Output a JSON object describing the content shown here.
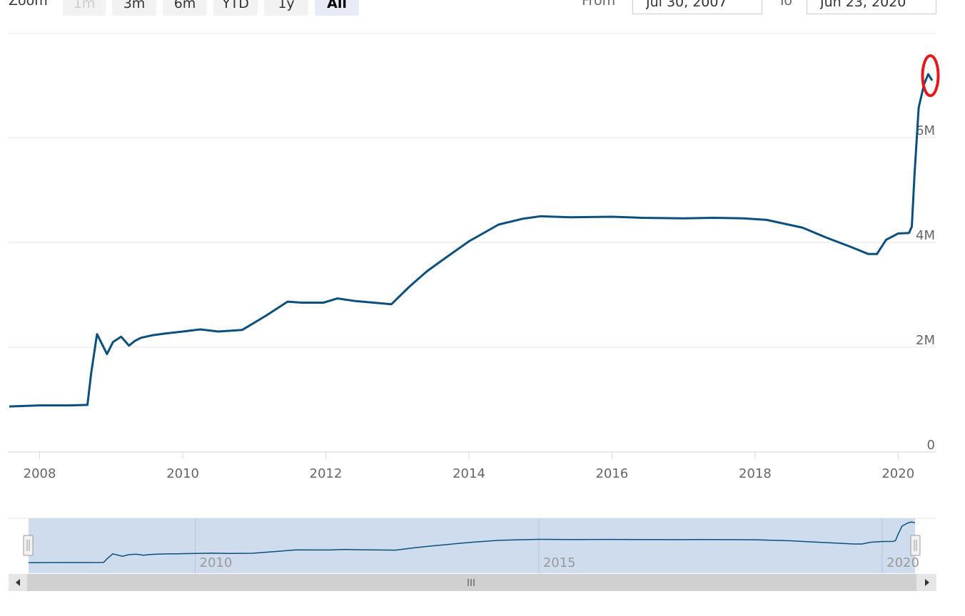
{
  "toolbar": {
    "zoom_label": "Zoom",
    "zoom_buttons": [
      {
        "label": "1m",
        "state": "disabled"
      },
      {
        "label": "3m",
        "state": "normal"
      },
      {
        "label": "6m",
        "state": "normal"
      },
      {
        "label": "YTD",
        "state": "normal"
      },
      {
        "label": "1y",
        "state": "normal"
      },
      {
        "label": "All",
        "state": "active"
      }
    ],
    "from_label": "From",
    "from_value": "Jul 30, 2007",
    "to_label": "To",
    "to_value": "Jun 23, 2020"
  },
  "colors": {
    "series": "#0b4f7c",
    "annotation": "#e31a1c",
    "navigator_fill": "#cfdcee",
    "scrollbar": "#d0d0d0"
  },
  "chart_data": {
    "type": "line",
    "title": "",
    "xlabel": "",
    "ylabel": "",
    "ylim": [
      0,
      8
    ],
    "xlim": [
      "2007-07-30",
      "2020-06-23"
    ],
    "y_ticks": [
      {
        "value": 0,
        "label": "0"
      },
      {
        "value": 2,
        "label": "2M"
      },
      {
        "value": 4,
        "label": "4M"
      },
      {
        "value": 6,
        "label": "6M"
      }
    ],
    "x_ticks": [
      {
        "date": "2008-01-01",
        "label": "2008"
      },
      {
        "date": "2010-01-01",
        "label": "2010"
      },
      {
        "date": "2012-01-01",
        "label": "2012"
      },
      {
        "date": "2014-01-01",
        "label": "2014"
      },
      {
        "date": "2016-01-01",
        "label": "2016"
      },
      {
        "date": "2018-01-01",
        "label": "2018"
      },
      {
        "date": "2020-01-01",
        "label": "2020"
      }
    ],
    "grid": true,
    "legend": "none",
    "series": [
      {
        "x": [
          "2007-07-30",
          "2008-01-01",
          "2008-06-01",
          "2008-09-01",
          "2008-09-20",
          "2008-10-20",
          "2008-12-10",
          "2009-01-10",
          "2009-02-20",
          "2009-04-01",
          "2009-05-01",
          "2009-06-01",
          "2009-08-01",
          "2009-10-01",
          "2010-01-01",
          "2010-04-01",
          "2010-07-01",
          "2010-11-01",
          "2011-03-01",
          "2011-06-20",
          "2011-09-01",
          "2011-12-20",
          "2012-03-01",
          "2012-06-01",
          "2012-09-01",
          "2012-12-01",
          "2013-03-01",
          "2013-06-01",
          "2013-09-01",
          "2014-01-01",
          "2014-06-01",
          "2014-10-01",
          "2015-01-01",
          "2015-06-01",
          "2016-01-01",
          "2016-06-01",
          "2017-01-01",
          "2017-06-01",
          "2017-11-01",
          "2018-03-01",
          "2018-09-01",
          "2019-01-01",
          "2019-05-01",
          "2019-08-01",
          "2019-09-15",
          "2019-11-01",
          "2020-01-01",
          "2020-02-26",
          "2020-03-11",
          "2020-03-25",
          "2020-04-15",
          "2020-05-13",
          "2020-06-03",
          "2020-06-23"
        ],
        "y": [
          0.87,
          0.89,
          0.89,
          0.9,
          1.5,
          2.25,
          1.87,
          2.1,
          2.2,
          2.03,
          2.12,
          2.18,
          2.23,
          2.26,
          2.3,
          2.34,
          2.3,
          2.33,
          2.6,
          2.87,
          2.85,
          2.85,
          2.93,
          2.88,
          2.85,
          2.82,
          3.15,
          3.45,
          3.7,
          4.02,
          4.34,
          4.45,
          4.5,
          4.48,
          4.49,
          4.47,
          4.46,
          4.47,
          4.46,
          4.43,
          4.28,
          4.09,
          3.92,
          3.78,
          3.78,
          4.05,
          4.17,
          4.18,
          4.3,
          5.3,
          6.57,
          7.02,
          7.21,
          7.09
        ]
      }
    ],
    "navigator": {
      "x_ticks": [
        {
          "date": "2010-01-01",
          "label": "2010"
        },
        {
          "date": "2015-01-01",
          "label": "2015"
        },
        {
          "date": "2020-01-01",
          "label": "2020"
        }
      ]
    }
  }
}
